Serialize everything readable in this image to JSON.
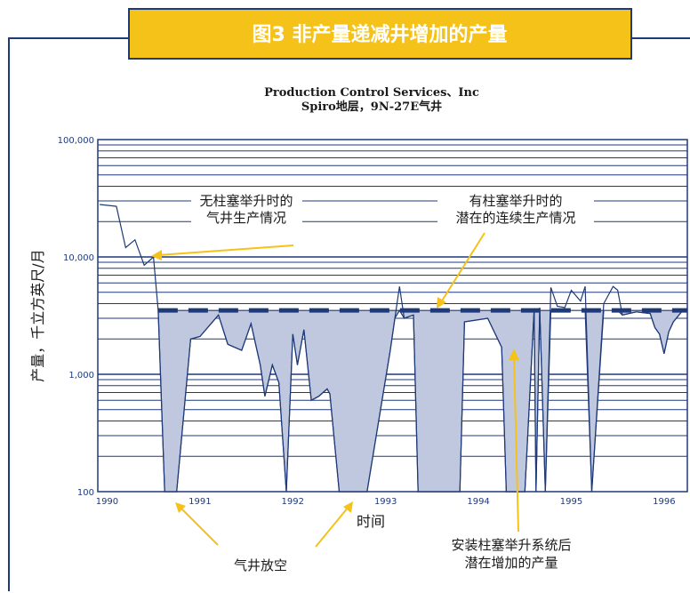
{
  "figure": {
    "title": "图3 非产量递减井增加的产量",
    "subtitle_line1": "Production Control Services、Inc",
    "subtitle_line2": "Spiro地层，9N-27E气井"
  },
  "annotations": {
    "without_plunger": [
      "无柱塞举升时的",
      "气井生产情况"
    ],
    "with_plunger": [
      "有柱塞举升时的",
      "潜在的连续生产情况"
    ],
    "venting": "气井放空",
    "gain": [
      "安装柱塞举升系统后",
      "潜在增加的产量"
    ]
  },
  "colors": {
    "frame": "#1f3a78",
    "title_fill": "#f5c21a",
    "gain_fill": "#bfc8df",
    "arrow": "#f5c21a"
  },
  "chart_data": {
    "type": "area",
    "xlabel": "时间",
    "ylabel": "产量，千立方英尺/月",
    "y_scale": "log",
    "ylim": [
      100,
      100000
    ],
    "xlim": [
      1989.9,
      1996.25
    ],
    "y_ticks": [
      100,
      1000,
      10000,
      100000
    ],
    "y_tick_labels": [
      "100",
      "1,000",
      "10,000",
      "100,000"
    ],
    "x_ticks": [
      1990,
      1991,
      1992,
      1993,
      1994,
      1995,
      1996
    ],
    "x_tick_labels": [
      "1990",
      "1991",
      "1992",
      "1993",
      "1994",
      "1995",
      "1996"
    ],
    "grid": true,
    "potential_rate": 3500,
    "series": [
      {
        "x": [
          1989.92,
          1990.1,
          1990.2,
          1990.3,
          1990.4,
          1990.5,
          1990.55,
          1990.62,
          1990.75,
          1990.9,
          1991.0,
          1991.2,
          1991.3,
          1991.45,
          1991.55,
          1991.65,
          1991.7,
          1991.78,
          1991.85,
          1991.93,
          1992.0,
          1992.05,
          1992.12,
          1992.2,
          1992.28,
          1992.37,
          1992.4,
          1992.5,
          1992.65,
          1992.72,
          1992.8,
          1993.05,
          1993.1,
          1993.15,
          1993.2,
          1993.3,
          1993.35,
          1993.45,
          1993.55,
          1993.8,
          1993.85,
          1994.1,
          1994.25,
          1994.3,
          1994.5,
          1994.6,
          1994.62,
          1994.66,
          1994.72,
          1994.78,
          1994.85,
          1994.93,
          1995.0,
          1995.1,
          1995.15,
          1995.22,
          1995.35,
          1995.45,
          1995.5,
          1995.55,
          1995.7,
          1995.85,
          1995.9,
          1995.95,
          1996.0,
          1996.05,
          1996.1,
          1996.2
        ],
        "y": [
          28000,
          27000,
          12000,
          14000,
          8500,
          10000,
          3500,
          100,
          100,
          2000,
          2100,
          3200,
          1800,
          1600,
          2700,
          1200,
          650,
          1200,
          850,
          100,
          2200,
          1200,
          2400,
          600,
          650,
          750,
          680,
          100,
          100,
          100,
          100,
          1600,
          3000,
          5600,
          3000,
          3200,
          100,
          100,
          100,
          100,
          2800,
          3000,
          1700,
          100,
          100,
          3600,
          100,
          3700,
          100,
          5500,
          3800,
          3700,
          5200,
          4200,
          5600,
          100,
          4000,
          5600,
          5200,
          3200,
          3400,
          3300,
          2500,
          2200,
          1500,
          2300,
          2800,
          3500
        ]
      }
    ]
  }
}
